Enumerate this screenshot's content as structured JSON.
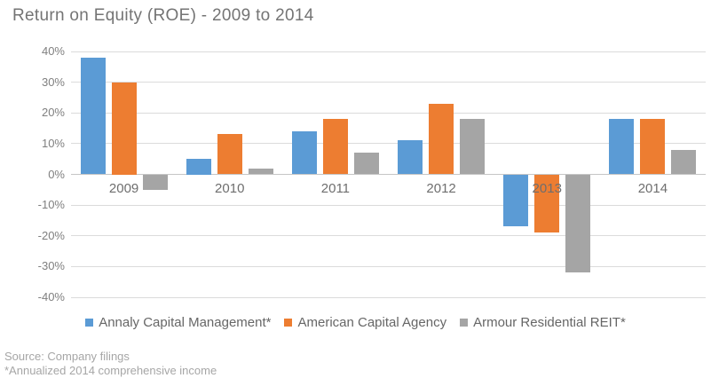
{
  "title": "Return on Equity (ROE) - 2009 to 2014",
  "chart_data": {
    "type": "bar",
    "categories": [
      "2009",
      "2010",
      "2011",
      "2012",
      "2013",
      "2014"
    ],
    "series": [
      {
        "name": "Annaly Capital Management*",
        "color": "#5B9BD5",
        "values": [
          38,
          5,
          14,
          11,
          -17,
          18
        ]
      },
      {
        "name": "American Capital Agency",
        "color": "#ED7D31",
        "values": [
          30,
          13,
          18,
          23,
          -19,
          18
        ]
      },
      {
        "name": "Armour Residential REIT*",
        "color": "#A5A5A5",
        "values": [
          -5,
          2,
          7,
          18,
          -32,
          8
        ]
      }
    ],
    "ylim": [
      -40,
      40
    ],
    "ytick_step": 10,
    "yticks": [
      "40%",
      "30%",
      "20%",
      "10%",
      "0%",
      "-10%",
      "-20%",
      "-30%",
      "-40%"
    ],
    "grid": true,
    "legend_position": "bottom"
  },
  "footer": {
    "source": "Source: Company filings",
    "footnote": "*Annualized 2014 comprehensive income"
  },
  "colors": {
    "background": "#FFFFFF",
    "gridline": "#DBDBDB",
    "zero_axis": "#C6C6C6",
    "title_text": "#747474",
    "ytick_text": "#7F7F7F",
    "xtick_text": "#6E6E6E",
    "legend_text": "#666666",
    "footer_text": "#A6A6A6"
  }
}
